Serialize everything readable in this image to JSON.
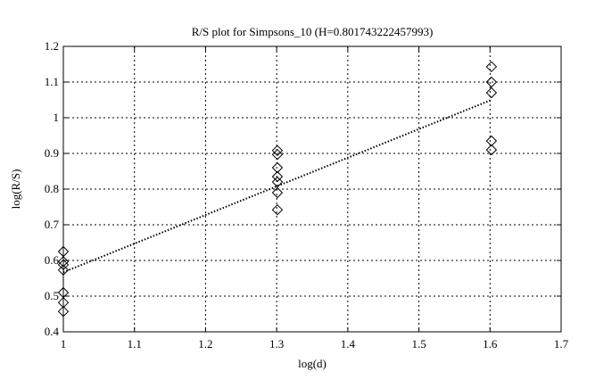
{
  "chart_data": {
    "type": "scatter",
    "title": "R/S plot for Simpsons_10 (H=0.801743222457993)",
    "xlabel": "log(d)",
    "ylabel": "log(R/S)",
    "xlim": [
      1,
      1.7
    ],
    "ylim": [
      0.4,
      1.2
    ],
    "xticks": [
      1,
      1.1,
      1.2,
      1.3,
      1.4,
      1.5,
      1.6,
      1.7
    ],
    "xtick_labels": [
      "1",
      "1.1",
      "1.2",
      "1.3",
      "1.4",
      "1.5",
      "1.6",
      "1.7"
    ],
    "yticks": [
      0.4,
      0.5,
      0.6,
      0.7,
      0.8,
      0.9,
      1.0,
      1.1,
      1.2
    ],
    "ytick_labels": [
      "0.4",
      "0.5",
      "0.6",
      "0.7",
      "0.8",
      "0.9",
      "1",
      "1.1",
      "1.2"
    ],
    "grid": true,
    "marker": "diamond",
    "points": [
      {
        "x": 1.0,
        "y": 0.625
      },
      {
        "x": 1.0,
        "y": 0.597
      },
      {
        "x": 1.0,
        "y": 0.588
      },
      {
        "x": 1.0,
        "y": 0.573
      },
      {
        "x": 1.0,
        "y": 0.51
      },
      {
        "x": 1.0,
        "y": 0.482
      },
      {
        "x": 1.0,
        "y": 0.457
      },
      {
        "x": 1.301,
        "y": 0.908
      },
      {
        "x": 1.301,
        "y": 0.897
      },
      {
        "x": 1.301,
        "y": 0.86
      },
      {
        "x": 1.301,
        "y": 0.835
      },
      {
        "x": 1.301,
        "y": 0.82
      },
      {
        "x": 1.301,
        "y": 0.79
      },
      {
        "x": 1.301,
        "y": 0.742
      },
      {
        "x": 1.602,
        "y": 1.143
      },
      {
        "x": 1.602,
        "y": 1.1
      },
      {
        "x": 1.602,
        "y": 1.07
      },
      {
        "x": 1.602,
        "y": 0.935
      },
      {
        "x": 1.602,
        "y": 0.91
      }
    ],
    "fit_line": {
      "x": [
        1.0,
        1.602
      ],
      "y": [
        0.567,
        1.05
      ],
      "style": "dotted"
    }
  }
}
